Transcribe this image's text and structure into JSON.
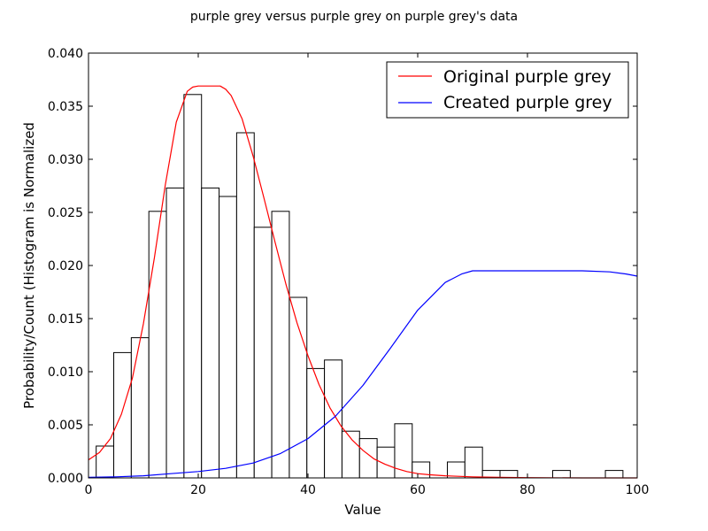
{
  "chart_data": {
    "type": "bar",
    "title": "purple grey versus purple grey on purple grey's data",
    "xlabel": "Value",
    "ylabel": "Probability/Count (Histogram is Normalized",
    "xlim": [
      0,
      100
    ],
    "ylim": [
      0,
      0.04
    ],
    "xticks": [
      0,
      20,
      40,
      60,
      80,
      100
    ],
    "xtick_labels": [
      "0",
      "20",
      "40",
      "60",
      "80",
      "100"
    ],
    "yticks": [
      0,
      0.005,
      0.01,
      0.015,
      0.02,
      0.025,
      0.03,
      0.035,
      0.04
    ],
    "ytick_labels": [
      "0.000",
      "0.005",
      "0.010",
      "0.015",
      "0.020",
      "0.025",
      "0.030",
      "0.035",
      "0.040"
    ],
    "grid": false,
    "legend_position": "top-right",
    "histogram": {
      "bin_edges": [
        1.4,
        4.6,
        7.8,
        11.0,
        14.2,
        17.4,
        20.6,
        23.8,
        27.0,
        30.2,
        33.4,
        36.6,
        39.8,
        43.0,
        46.2,
        49.4,
        52.6,
        55.8,
        59.0,
        62.2,
        65.4,
        68.6,
        71.8,
        75.0,
        78.2,
        81.4,
        84.6,
        87.8,
        91.0,
        94.2,
        97.4
      ],
      "values": [
        0.003,
        0.0118,
        0.0132,
        0.0251,
        0.0273,
        0.0361,
        0.0273,
        0.0265,
        0.0325,
        0.0236,
        0.0251,
        0.017,
        0.0103,
        0.0111,
        0.0044,
        0.0037,
        0.0029,
        0.0051,
        0.0015,
        0.0,
        0.0015,
        0.0029,
        0.0007,
        0.0007,
        0.0,
        0.0,
        0.0007,
        0.0,
        0.0,
        0.0007
      ]
    },
    "series": [
      {
        "name": "Original purple grey",
        "color": "#ff0000",
        "x": [
          0,
          2,
          4,
          6,
          8,
          10,
          12,
          14,
          16,
          18,
          19,
          20,
          22,
          24,
          25,
          26,
          28,
          30,
          32,
          34,
          36,
          38,
          40,
          42,
          44,
          46,
          48,
          50,
          52,
          54,
          56,
          58,
          60,
          62,
          65,
          70,
          75,
          80,
          90,
          100
        ],
        "y": [
          0.0017,
          0.0024,
          0.0037,
          0.006,
          0.0094,
          0.0145,
          0.0207,
          0.0276,
          0.0335,
          0.0364,
          0.0368,
          0.0369,
          0.0369,
          0.0369,
          0.0366,
          0.036,
          0.0338,
          0.0303,
          0.0263,
          0.0222,
          0.0182,
          0.0146,
          0.0115,
          0.0088,
          0.0066,
          0.0049,
          0.0036,
          0.0026,
          0.0018,
          0.0013,
          0.0009,
          0.0006,
          0.0004,
          0.0003,
          0.0002,
          0.0001,
          5e-05,
          2e-05,
          0.0,
          0.0
        ]
      },
      {
        "name": "Created purple grey",
        "color": "#0000ff",
        "x": [
          0,
          5,
          10,
          15,
          20,
          25,
          30,
          35,
          40,
          45,
          50,
          55,
          60,
          65,
          68,
          70,
          72,
          75,
          80,
          85,
          90,
          95,
          98,
          100
        ],
        "y": [
          5e-05,
          0.0001,
          0.0002,
          0.0004,
          0.0006,
          0.0009,
          0.0014,
          0.0023,
          0.0037,
          0.0058,
          0.0087,
          0.0122,
          0.0158,
          0.0184,
          0.0192,
          0.0195,
          0.0195,
          0.0195,
          0.0195,
          0.0195,
          0.0195,
          0.0194,
          0.0192,
          0.019
        ]
      }
    ]
  }
}
